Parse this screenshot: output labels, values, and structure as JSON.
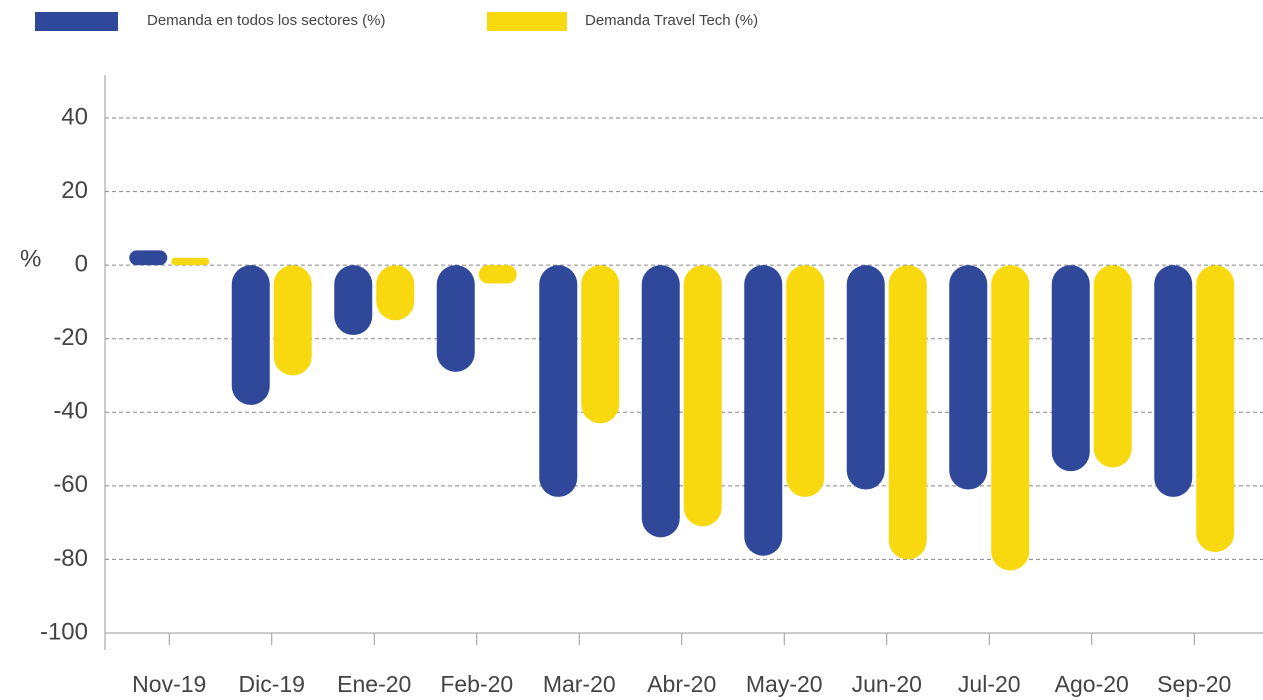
{
  "chart_data": {
    "type": "bar",
    "y_label": "%",
    "categories": [
      "Nov-19",
      "Dic-19",
      "Ene-20",
      "Feb-20",
      "Mar-20",
      "Abr-20",
      "May-20",
      "Jun-20",
      "Jul-20",
      "Ago-20",
      "Sep-20"
    ],
    "series": [
      {
        "name": "Demanda en todos los sectores (%)",
        "color": "#2f4899",
        "values": [
          4,
          -38,
          -19,
          -29,
          -63,
          -74,
          -79,
          -61,
          -61,
          -56,
          -63
        ]
      },
      {
        "name": "Demanda Travel Tech (%)",
        "color": "#f8d90f",
        "values": [
          2,
          -30,
          -15,
          -5,
          -43,
          -71,
          -63,
          -80,
          -83,
          -55,
          -78
        ]
      }
    ],
    "ylim": [
      -100,
      40
    ],
    "yticks": [
      -100,
      -80,
      -60,
      -40,
      -20,
      0,
      20,
      40
    ],
    "grid": true
  }
}
